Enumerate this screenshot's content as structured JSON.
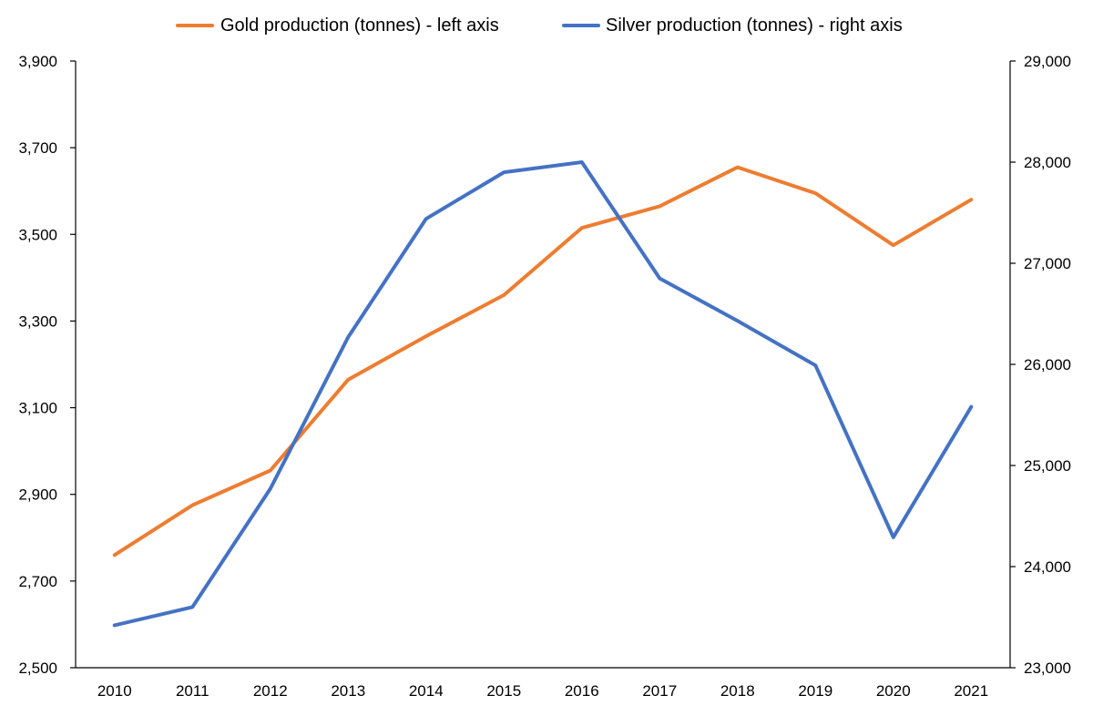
{
  "chart_data": {
    "type": "line",
    "title": "",
    "xlabel": "",
    "categories": [
      "2010",
      "2011",
      "2012",
      "2013",
      "2014",
      "2015",
      "2016",
      "2017",
      "2018",
      "2019",
      "2020",
      "2021"
    ],
    "y_left": {
      "ylim": [
        2500,
        3900
      ],
      "ticks": [
        2500,
        2700,
        2900,
        3100,
        3300,
        3500,
        3700,
        3900
      ],
      "tick_labels": [
        "2,500",
        "2,700",
        "2,900",
        "3,100",
        "3,300",
        "3,500",
        "3,700",
        "3,900"
      ]
    },
    "y_right": {
      "ylim": [
        23000,
        29000
      ],
      "ticks": [
        23000,
        24000,
        25000,
        26000,
        27000,
        28000,
        29000
      ],
      "tick_labels": [
        "23,000",
        "24,000",
        "25,000",
        "26,000",
        "27,000",
        "28,000",
        "29,000"
      ]
    },
    "series": [
      {
        "name": "Gold production (tonnes) - left axis",
        "axis": "left",
        "color": "#ED7D31",
        "values": [
          2760,
          2875,
          2955,
          3165,
          3265,
          3360,
          3515,
          3565,
          3655,
          3595,
          3475,
          3580
        ]
      },
      {
        "name": "Silver production (tonnes) - right axis",
        "axis": "right",
        "color": "#4472C4",
        "values": [
          23420,
          23600,
          24770,
          26270,
          27440,
          27900,
          28000,
          26850,
          26430,
          25990,
          24290,
          25580
        ]
      }
    ],
    "grid": false,
    "legend_position": "top"
  }
}
